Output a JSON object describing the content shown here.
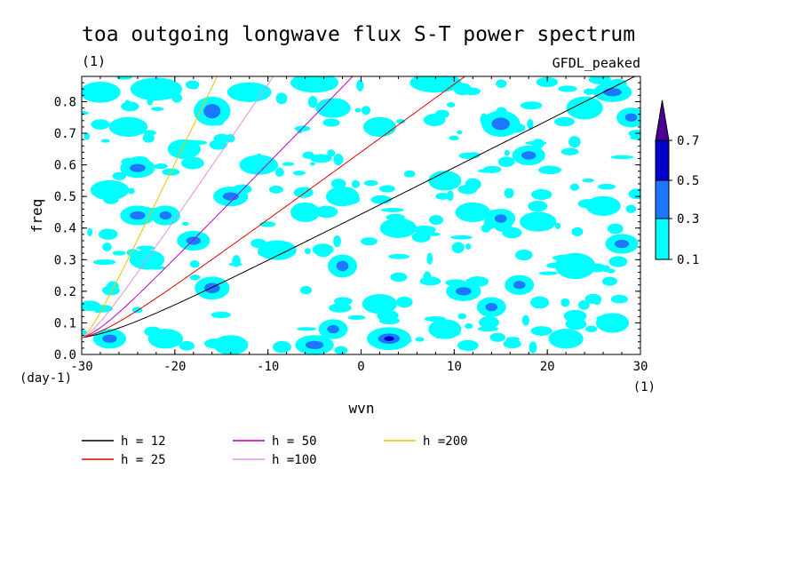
{
  "chart_data": {
    "type": "heatmap",
    "title": "toa outgoing longwave flux S-T power spectrum",
    "subtitle_left": "(1)",
    "subtitle_right": "GFDL_peaked",
    "xlabel": "wvn",
    "ylabel": "freq",
    "x_unit": "(1)",
    "y_unit": "(day-1)",
    "xlim": [
      -30,
      30
    ],
    "ylim": [
      0,
      0.88
    ],
    "x_ticks": [
      -30,
      -20,
      -10,
      0,
      10,
      20,
      30
    ],
    "x_tick_labels": [
      "-30",
      "-20",
      "-10",
      "0",
      "10",
      "20",
      "30"
    ],
    "y_ticks": [
      0.0,
      0.1,
      0.2,
      0.3,
      0.4,
      0.5,
      0.6,
      0.7,
      0.8
    ],
    "y_tick_labels": [
      "0.0",
      "0.1",
      "0.2",
      "0.3",
      "0.4",
      "0.5",
      "0.6",
      "0.7",
      "0.8"
    ],
    "colorbar": {
      "levels": [
        "0.1",
        "0.3",
        "0.5",
        "0.7"
      ],
      "colors": [
        "#00ffff",
        "#1e78ff",
        "#0000c8",
        "#4b0096"
      ]
    },
    "contour_patches": [
      {
        "x": -28,
        "y": 0.83,
        "rx": 1.6,
        "ry": 0.022,
        "level": 0
      },
      {
        "x": -22,
        "y": 0.84,
        "rx": 2.2,
        "ry": 0.025,
        "level": 0
      },
      {
        "x": -16,
        "y": 0.77,
        "rx": 1.4,
        "ry": 0.035,
        "level": 1
      },
      {
        "x": -12,
        "y": 0.83,
        "rx": 1.8,
        "ry": 0.02,
        "level": 0
      },
      {
        "x": -5,
        "y": 0.86,
        "rx": 2.0,
        "ry": 0.02,
        "level": 0
      },
      {
        "x": -25,
        "y": 0.72,
        "rx": 1.5,
        "ry": 0.02,
        "level": 0
      },
      {
        "x": -24,
        "y": 0.59,
        "rx": 1.3,
        "ry": 0.02,
        "level": 1
      },
      {
        "x": -19,
        "y": 0.65,
        "rx": 1.2,
        "ry": 0.02,
        "level": 0
      },
      {
        "x": -11,
        "y": 0.6,
        "rx": 1.5,
        "ry": 0.02,
        "level": 0
      },
      {
        "x": -3,
        "y": 0.78,
        "rx": 1.3,
        "ry": 0.02,
        "level": 0
      },
      {
        "x": 2,
        "y": 0.72,
        "rx": 1.2,
        "ry": 0.02,
        "level": 0
      },
      {
        "x": 8,
        "y": 0.86,
        "rx": 2.2,
        "ry": 0.02,
        "level": 0
      },
      {
        "x": 15,
        "y": 0.73,
        "rx": 1.5,
        "ry": 0.03,
        "level": 1
      },
      {
        "x": 24,
        "y": 0.78,
        "rx": 1.4,
        "ry": 0.025,
        "level": 0
      },
      {
        "x": 27,
        "y": 0.83,
        "rx": 1.5,
        "ry": 0.02,
        "level": 1
      },
      {
        "x": 29,
        "y": 0.75,
        "rx": 1.0,
        "ry": 0.02,
        "level": 1
      },
      {
        "x": 18,
        "y": 0.63,
        "rx": 1.2,
        "ry": 0.02,
        "level": 1
      },
      {
        "x": -14,
        "y": 0.5,
        "rx": 1.3,
        "ry": 0.02,
        "level": 1
      },
      {
        "x": -24,
        "y": 0.44,
        "rx": 1.3,
        "ry": 0.02,
        "level": 1
      },
      {
        "x": -21,
        "y": 0.44,
        "rx": 1.0,
        "ry": 0.02,
        "level": 1
      },
      {
        "x": -18,
        "y": 0.36,
        "rx": 1.2,
        "ry": 0.02,
        "level": 1
      },
      {
        "x": -27,
        "y": 0.52,
        "rx": 1.5,
        "ry": 0.02,
        "level": 0
      },
      {
        "x": -6,
        "y": 0.45,
        "rx": 1.0,
        "ry": 0.02,
        "level": 0
      },
      {
        "x": -2,
        "y": 0.5,
        "rx": 1.2,
        "ry": 0.02,
        "level": 0
      },
      {
        "x": 4,
        "y": 0.4,
        "rx": 1.4,
        "ry": 0.02,
        "level": 0
      },
      {
        "x": 9,
        "y": 0.55,
        "rx": 1.2,
        "ry": 0.02,
        "level": 0
      },
      {
        "x": 12,
        "y": 0.45,
        "rx": 1.3,
        "ry": 0.02,
        "level": 0
      },
      {
        "x": 15,
        "y": 0.43,
        "rx": 1.0,
        "ry": 0.02,
        "level": 1
      },
      {
        "x": 19,
        "y": 0.42,
        "rx": 1.4,
        "ry": 0.02,
        "level": 0
      },
      {
        "x": 26,
        "y": 0.47,
        "rx": 1.3,
        "ry": 0.02,
        "level": 0
      },
      {
        "x": 28,
        "y": 0.35,
        "rx": 1.2,
        "ry": 0.02,
        "level": 1
      },
      {
        "x": -16,
        "y": 0.21,
        "rx": 1.3,
        "ry": 0.025,
        "level": 1
      },
      {
        "x": -23,
        "y": 0.3,
        "rx": 1.3,
        "ry": 0.02,
        "level": 0
      },
      {
        "x": -9,
        "y": 0.33,
        "rx": 1.5,
        "ry": 0.02,
        "level": 0
      },
      {
        "x": -2,
        "y": 0.28,
        "rx": 1.0,
        "ry": 0.025,
        "level": 1
      },
      {
        "x": 2,
        "y": 0.16,
        "rx": 1.3,
        "ry": 0.02,
        "level": 0
      },
      {
        "x": 11,
        "y": 0.2,
        "rx": 1.3,
        "ry": 0.02,
        "level": 1
      },
      {
        "x": 14,
        "y": 0.15,
        "rx": 1.0,
        "ry": 0.02,
        "level": 1
      },
      {
        "x": 17,
        "y": 0.22,
        "rx": 1.0,
        "ry": 0.02,
        "level": 1
      },
      {
        "x": 23,
        "y": 0.28,
        "rx": 1.6,
        "ry": 0.03,
        "level": 0
      },
      {
        "x": -27,
        "y": 0.05,
        "rx": 1.2,
        "ry": 0.02,
        "level": 1
      },
      {
        "x": -21,
        "y": 0.05,
        "rx": 1.3,
        "ry": 0.02,
        "level": 0
      },
      {
        "x": -14,
        "y": 0.03,
        "rx": 1.3,
        "ry": 0.02,
        "level": 0
      },
      {
        "x": -5,
        "y": 0.03,
        "rx": 1.5,
        "ry": 0.02,
        "level": 1
      },
      {
        "x": -3,
        "y": 0.08,
        "rx": 1.0,
        "ry": 0.02,
        "level": 1
      },
      {
        "x": 3,
        "y": 0.05,
        "rx": 1.8,
        "ry": 0.025,
        "level": 2
      },
      {
        "x": 9,
        "y": 0.08,
        "rx": 1.2,
        "ry": 0.02,
        "level": 0
      },
      {
        "x": 22,
        "y": 0.05,
        "rx": 1.3,
        "ry": 0.02,
        "level": 0
      },
      {
        "x": 27,
        "y": 0.1,
        "rx": 1.2,
        "ry": 0.02,
        "level": 0
      }
    ],
    "series": [
      {
        "name": "h = 12",
        "h": 12,
        "color": "#000000"
      },
      {
        "name": "h = 25",
        "h": 25,
        "color": "#e00000"
      },
      {
        "name": "h = 50",
        "h": 50,
        "color": "#c000c0"
      },
      {
        "name": "h =100",
        "h": 100,
        "color": "#e090e0"
      },
      {
        "name": "h =200",
        "h": 200,
        "color": "#f0c000"
      }
    ],
    "legend_placement": "bottom"
  }
}
